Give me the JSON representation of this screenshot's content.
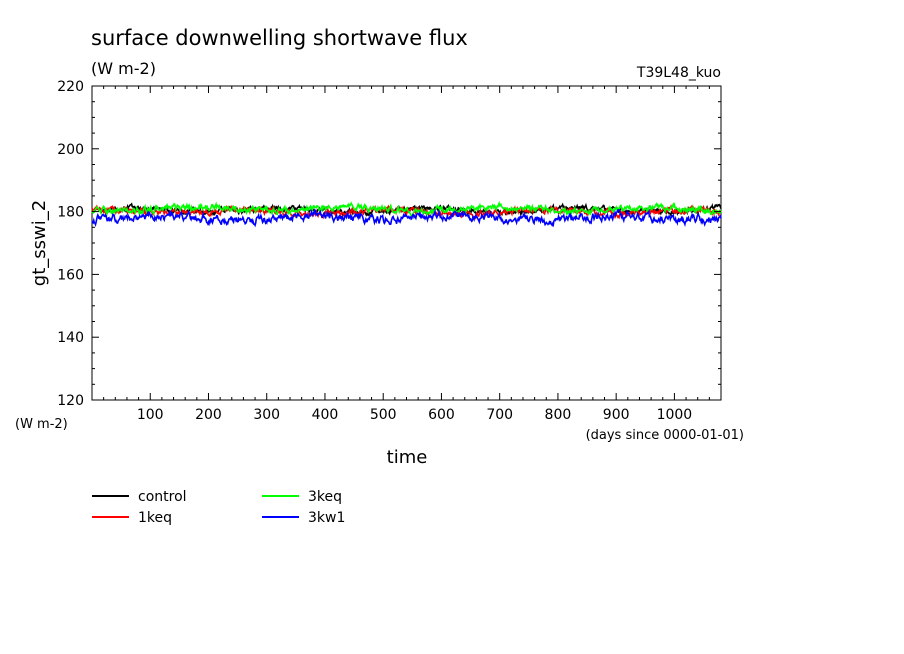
{
  "chart_data": {
    "type": "line",
    "title": "surface downwelling shortwave flux",
    "units": "(W m-2)",
    "experiment": "T39L48_kuo",
    "ylabel": "gt_sswi_2",
    "y_units": "(W m-2)",
    "xlabel": "time",
    "x_units": "(days since 0000-01-01)",
    "xlim": [
      0,
      1080
    ],
    "ylim": [
      120,
      220
    ],
    "x_ticks": [
      "100",
      "200",
      "300",
      "400",
      "500",
      "600",
      "700",
      "800",
      "900",
      "1000"
    ],
    "y_ticks": [
      "120",
      "140",
      "160",
      "180",
      "200",
      "220"
    ],
    "series": [
      {
        "name": "control",
        "color": "#000000",
        "x": [
          0,
          1080
        ],
        "values": [
          180.5,
          180.5
        ]
      },
      {
        "name": "1keq",
        "color": "#ff0000",
        "x": [
          0,
          1080
        ],
        "values": [
          180.0,
          180.0
        ]
      },
      {
        "name": "3keq",
        "color": "#00ff00",
        "x": [
          0,
          1080
        ],
        "values": [
          180.8,
          180.8
        ]
      },
      {
        "name": "3kw1",
        "color": "#0000ff",
        "x": [
          0,
          1080
        ],
        "values": [
          178.0,
          178.0
        ]
      }
    ]
  }
}
